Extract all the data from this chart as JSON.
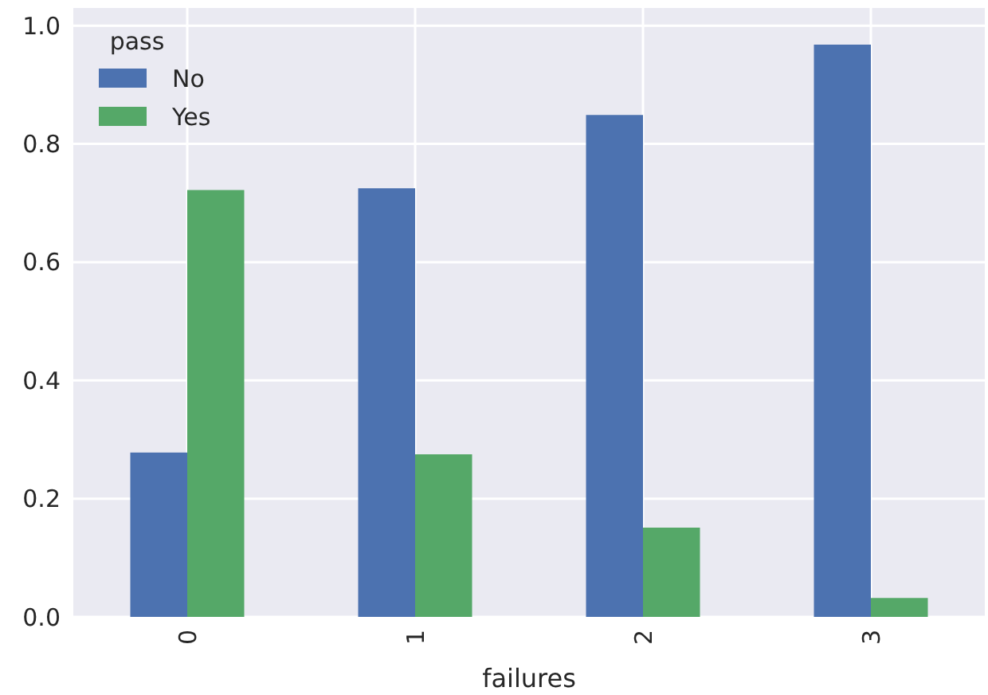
{
  "chart_data": {
    "type": "bar",
    "xlabel": "failures",
    "legend_title": "pass",
    "categories": [
      "0",
      "1",
      "2",
      "3"
    ],
    "series": [
      {
        "name": "No",
        "color": "#4c72b0",
        "values": [
          0.278,
          0.725,
          0.849,
          0.968
        ]
      },
      {
        "name": "Yes",
        "color": "#55a868",
        "values": [
          0.722,
          0.275,
          0.151,
          0.032
        ]
      }
    ],
    "ylim": [
      0,
      1.03
    ],
    "yticks": [
      {
        "value": 0,
        "label": "0.0"
      },
      {
        "value": 0.2,
        "label": "0.2"
      },
      {
        "value": 0.4,
        "label": "0.4"
      },
      {
        "value": 0.6,
        "label": "0.6"
      },
      {
        "value": 0.8,
        "label": "0.8"
      },
      {
        "value": 1,
        "label": "1.0"
      }
    ],
    "grid": true,
    "legend": "top left"
  }
}
